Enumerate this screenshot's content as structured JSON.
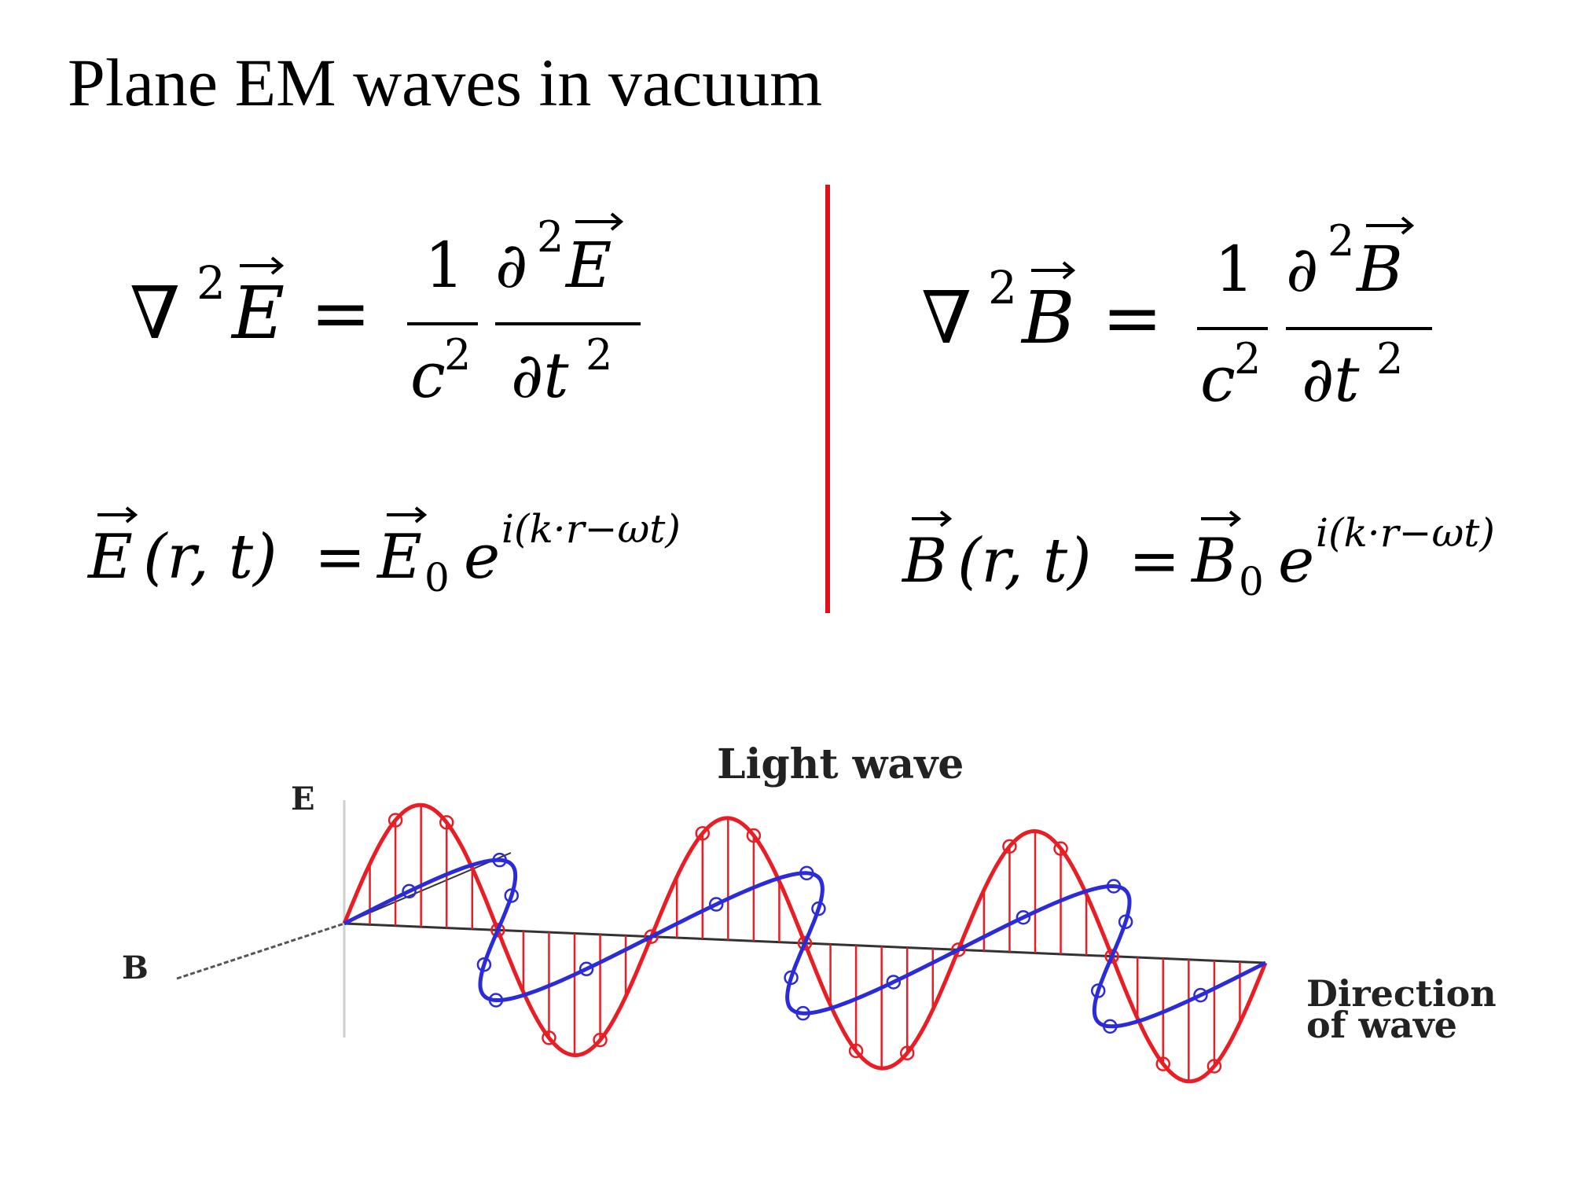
{
  "title": "Plane EM waves in vacuum",
  "accent_color": "#e3101a",
  "equations": {
    "left_wave": {
      "lhs_operator": "∇",
      "lhs_exp": "2",
      "lhs_field": "E",
      "equals": "=",
      "coef_num": "1",
      "coef_den": "c",
      "coef_den_exp": "2",
      "deriv_num": "∂",
      "deriv_num_exp": "2",
      "deriv_field": "E",
      "deriv_den": "∂t",
      "deriv_den_exp": "2"
    },
    "right_wave": {
      "lhs_operator": "∇",
      "lhs_exp": "2",
      "lhs_field": "B",
      "equals": "=",
      "coef_num": "1",
      "coef_den": "c",
      "coef_den_exp": "2",
      "deriv_num": "∂",
      "deriv_num_exp": "2",
      "deriv_field": "B",
      "deriv_den": "∂t",
      "deriv_den_exp": "2"
    },
    "left_solution": {
      "field": "E",
      "args": "(r, t)",
      "equals": "=",
      "amp": "E",
      "amp_sub": "0",
      "exp_base": "e",
      "exponent": "i(k·r−ωt)"
    },
    "right_solution": {
      "field": "B",
      "args": "(r, t)",
      "equals": "=",
      "amp": "B",
      "amp_sub": "0",
      "exp_base": "e",
      "exponent": "i(k·r−ωt)"
    }
  },
  "diagram": {
    "caption": "Light wave",
    "label_e": "E",
    "label_b": "B",
    "direction_line1": "Direction",
    "direction_line2": "of wave",
    "e_color": "#ea1c24",
    "b_color": "#2b2bd9"
  }
}
